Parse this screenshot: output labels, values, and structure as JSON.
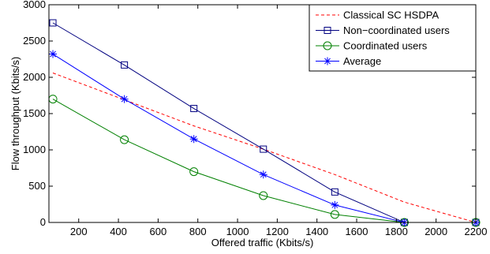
{
  "chart_data": {
    "type": "line",
    "xlabel": "Offered traffic (Kbits/s)",
    "ylabel": "Flow throughput (Kbits/s)",
    "xlim": [
      50,
      2200
    ],
    "ylim": [
      0,
      3000
    ],
    "xticks": [
      200,
      400,
      600,
      800,
      1000,
      1200,
      1400,
      1600,
      1800,
      2000,
      2200
    ],
    "yticks": [
      0,
      500,
      1000,
      1500,
      2000,
      2500,
      3000
    ],
    "grid": false,
    "legend_position": "top-right",
    "series": [
      {
        "name": "Classical SC HSDPA",
        "color": "#ff0000",
        "line_style": "dashed",
        "marker": "none",
        "x": [
          70,
          430,
          780,
          1130,
          1490,
          1840,
          2200
        ],
        "y": [
          2060,
          1690,
          1330,
          1010,
          660,
          280,
          0
        ]
      },
      {
        "name": "Non−coordinated users",
        "color": "#000080",
        "line_style": "solid",
        "marker": "square",
        "x": [
          70,
          430,
          780,
          1130,
          1490,
          1840,
          2200
        ],
        "y": [
          2750,
          2170,
          1570,
          1010,
          420,
          0,
          0
        ]
      },
      {
        "name": "Coordinated users",
        "color": "#008000",
        "line_style": "solid",
        "marker": "circle",
        "x": [
          70,
          430,
          780,
          1130,
          1490,
          1840,
          2200
        ],
        "y": [
          1700,
          1140,
          700,
          370,
          110,
          0,
          0
        ]
      },
      {
        "name": "Average",
        "color": "#0000ff",
        "line_style": "solid",
        "marker": "star",
        "x": [
          70,
          430,
          780,
          1130,
          1490,
          1840,
          2200
        ],
        "y": [
          2320,
          1700,
          1150,
          660,
          240,
          0,
          0
        ]
      }
    ]
  }
}
